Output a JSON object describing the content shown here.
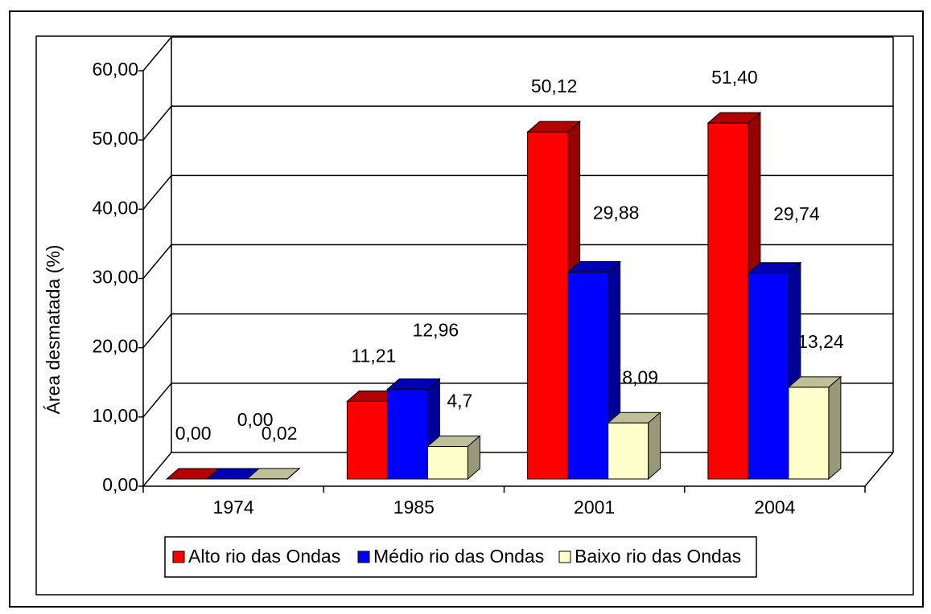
{
  "chart_data": {
    "type": "bar3d",
    "y_label": "Área desmatada (%)",
    "categories": [
      "1974",
      "1985",
      "2001",
      "2004"
    ],
    "series": [
      {
        "name": "Alto rio das Ondas",
        "color": "#ff0000",
        "values": [
          0,
          11.21,
          50.12,
          51.4
        ],
        "value_labels": [
          "0,00",
          "11,21",
          "50,12",
          "51,40"
        ]
      },
      {
        "name": "Médio rio das Ondas",
        "color": "#0000ff",
        "values": [
          0,
          12.96,
          29.88,
          29.74
        ],
        "value_labels": [
          "0,00",
          "12,96",
          "29,88",
          "29,74"
        ]
      },
      {
        "name": "Baixo rio das Ondas",
        "color": "#ffffcc",
        "values": [
          0.02,
          4.7,
          8.09,
          13.24
        ],
        "value_labels": [
          "0,02",
          "4,7",
          "8,09",
          "13,24"
        ]
      }
    ],
    "ylim": [
      0,
      60
    ],
    "yticks": [
      {
        "value": 0,
        "label": "0,00"
      },
      {
        "value": 10,
        "label": "10,00"
      },
      {
        "value": 20,
        "label": "20,00"
      },
      {
        "value": 30,
        "label": "30,00"
      },
      {
        "value": 40,
        "label": "40,00"
      },
      {
        "value": 50,
        "label": "50,00"
      },
      {
        "value": 60,
        "label": "60,00"
      }
    ],
    "grid": true,
    "legend": "bottom"
  }
}
